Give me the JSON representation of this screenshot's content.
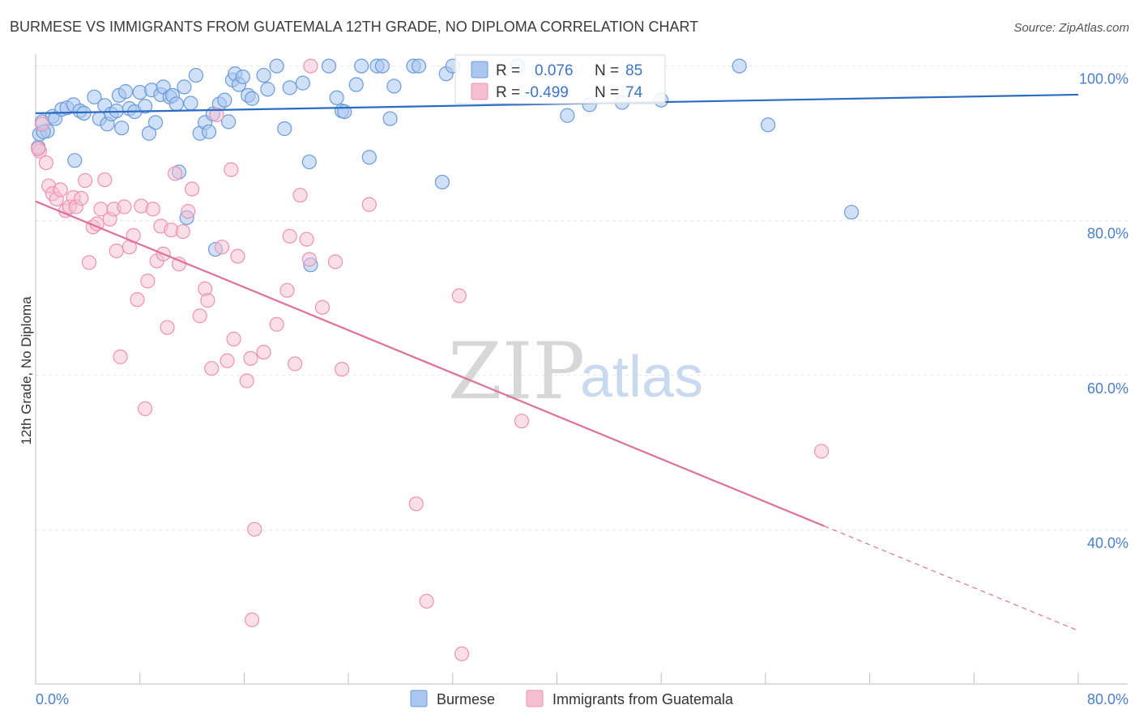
{
  "header": {
    "title": "BURMESE VS IMMIGRANTS FROM GUATEMALA 12TH GRADE, NO DIPLOMA CORRELATION CHART",
    "source": "Source: ZipAtlas.com"
  },
  "watermark": {
    "zip": "ZIP",
    "atlas": "atlas"
  },
  "legend": {
    "r_label": "R =",
    "n_label": "N =",
    "entries": [
      {
        "r": "0.076",
        "n": "85"
      },
      {
        "r": "-0.499",
        "n": "74"
      }
    ]
  },
  "colors": {
    "burmese_fill": "#a9c6ee",
    "burmese_stroke": "#6b9bdc",
    "burmese_line": "#2a6cc4",
    "guatemala_fill": "#f6bfd1",
    "guatemala_stroke": "#ee91b0",
    "guatemala_line": "#e0709a",
    "grid": "#e4e4e4",
    "axis_text": "#4a7fc9"
  },
  "chart_data": {
    "type": "scatter",
    "title": "BURMESE VS IMMIGRANTS FROM GUATEMALA 12TH GRADE, NO DIPLOMA CORRELATION CHART",
    "xlabel": "",
    "ylabel": "12th Grade, No Diploma",
    "xlim": [
      0,
      80
    ],
    "ylim": [
      20,
      102
    ],
    "x_tick_labels": [
      "0.0%",
      "80.0%"
    ],
    "y_ticks": [
      40,
      60,
      80,
      100
    ],
    "y_tick_labels": [
      "40.0%",
      "60.0%",
      "80.0%",
      "100.0%"
    ],
    "grid": true,
    "legend_placement": "top-center",
    "series": [
      {
        "name": "Burmese",
        "r": 0.076,
        "n": 85,
        "trend": {
          "x": [
            0,
            80
          ],
          "y": [
            93.9,
            96.3
          ],
          "dashed_from": null
        },
        "points": [
          [
            0.2,
            89.5
          ],
          [
            0.3,
            91.2
          ],
          [
            0.5,
            92.8
          ],
          [
            0.9,
            91.6
          ],
          [
            1.3,
            93.5
          ],
          [
            1.5,
            93.2
          ],
          [
            2.0,
            94.4
          ],
          [
            2.4,
            94.6
          ],
          [
            2.9,
            95.0
          ],
          [
            3.0,
            87.8
          ],
          [
            3.4,
            94.2
          ],
          [
            3.7,
            93.9
          ],
          [
            4.5,
            96.0
          ],
          [
            4.9,
            93.2
          ],
          [
            5.3,
            94.9
          ],
          [
            5.5,
            92.5
          ],
          [
            5.8,
            93.8
          ],
          [
            6.2,
            94.2
          ],
          [
            6.4,
            96.2
          ],
          [
            6.6,
            92.0
          ],
          [
            6.9,
            96.7
          ],
          [
            7.2,
            94.5
          ],
          [
            7.6,
            94.1
          ],
          [
            8.0,
            96.6
          ],
          [
            8.4,
            94.8
          ],
          [
            8.7,
            91.3
          ],
          [
            8.9,
            96.9
          ],
          [
            9.2,
            92.7
          ],
          [
            9.6,
            96.3
          ],
          [
            9.8,
            97.3
          ],
          [
            10.3,
            96.0
          ],
          [
            10.5,
            96.2
          ],
          [
            10.8,
            95.1
          ],
          [
            11.0,
            86.3
          ],
          [
            11.4,
            97.3
          ],
          [
            11.6,
            80.4
          ],
          [
            11.9,
            95.2
          ],
          [
            12.3,
            98.8
          ],
          [
            12.6,
            91.3
          ],
          [
            13.0,
            92.7
          ],
          [
            13.3,
            91.5
          ],
          [
            13.6,
            93.8
          ],
          [
            13.8,
            76.3
          ],
          [
            14.1,
            95.1
          ],
          [
            14.5,
            95.6
          ],
          [
            14.8,
            92.8
          ],
          [
            15.1,
            98.2
          ],
          [
            15.3,
            99.0
          ],
          [
            15.6,
            97.6
          ],
          [
            15.9,
            98.6
          ],
          [
            16.3,
            96.2
          ],
          [
            16.6,
            95.8
          ],
          [
            17.5,
            98.8
          ],
          [
            17.8,
            97.0
          ],
          [
            18.5,
            100.0
          ],
          [
            19.1,
            91.9
          ],
          [
            19.5,
            97.2
          ],
          [
            20.5,
            97.8
          ],
          [
            21.0,
            87.6
          ],
          [
            21.1,
            74.3
          ],
          [
            22.5,
            100.0
          ],
          [
            23.1,
            95.9
          ],
          [
            23.5,
            94.2
          ],
          [
            23.7,
            94.1
          ],
          [
            24.6,
            97.6
          ],
          [
            25.0,
            100.0
          ],
          [
            25.6,
            88.2
          ],
          [
            26.2,
            100.0
          ],
          [
            26.6,
            100.0
          ],
          [
            27.2,
            93.2
          ],
          [
            27.5,
            97.4
          ],
          [
            29.0,
            100.0
          ],
          [
            29.4,
            100.0
          ],
          [
            31.2,
            85.0
          ],
          [
            31.5,
            99.0
          ],
          [
            32.0,
            100.0
          ],
          [
            37.0,
            100.0
          ],
          [
            40.8,
            93.6
          ],
          [
            42.5,
            95.0
          ],
          [
            45.0,
            95.3
          ],
          [
            48.0,
            95.6
          ],
          [
            54.0,
            100.0
          ],
          [
            56.2,
            92.4
          ],
          [
            62.6,
            81.1
          ],
          [
            0.6,
            91.5
          ]
        ]
      },
      {
        "name": "Immigrants from Guatemala",
        "r": -0.499,
        "n": 74,
        "trend": {
          "x": [
            0,
            80
          ],
          "y": [
            82.5,
            27.0
          ],
          "dashed_from": 60.5
        },
        "points": [
          [
            0.3,
            89.0
          ],
          [
            0.5,
            92.5
          ],
          [
            0.8,
            87.5
          ],
          [
            1.0,
            84.5
          ],
          [
            1.3,
            83.5
          ],
          [
            1.6,
            82.8
          ],
          [
            1.9,
            84.0
          ],
          [
            2.3,
            81.3
          ],
          [
            2.6,
            81.8
          ],
          [
            2.9,
            83.0
          ],
          [
            3.1,
            81.8
          ],
          [
            3.5,
            82.9
          ],
          [
            3.8,
            85.2
          ],
          [
            4.1,
            74.6
          ],
          [
            4.4,
            79.2
          ],
          [
            4.7,
            79.6
          ],
          [
            5.0,
            81.5
          ],
          [
            5.3,
            85.3
          ],
          [
            5.7,
            80.2
          ],
          [
            6.0,
            81.5
          ],
          [
            6.2,
            76.1
          ],
          [
            6.5,
            62.4
          ],
          [
            6.8,
            81.8
          ],
          [
            7.2,
            76.6
          ],
          [
            7.5,
            78.1
          ],
          [
            7.8,
            69.8
          ],
          [
            8.1,
            81.9
          ],
          [
            8.4,
            55.7
          ],
          [
            8.6,
            72.2
          ],
          [
            9.0,
            81.5
          ],
          [
            9.3,
            74.8
          ],
          [
            9.6,
            79.3
          ],
          [
            9.8,
            75.7
          ],
          [
            10.1,
            66.2
          ],
          [
            10.4,
            78.8
          ],
          [
            10.7,
            86.1
          ],
          [
            11.0,
            74.4
          ],
          [
            11.3,
            78.6
          ],
          [
            11.7,
            81.2
          ],
          [
            12.0,
            84.1
          ],
          [
            12.6,
            67.7
          ],
          [
            13.0,
            71.2
          ],
          [
            13.2,
            69.7
          ],
          [
            13.5,
            60.9
          ],
          [
            13.9,
            93.7
          ],
          [
            14.3,
            76.6
          ],
          [
            14.7,
            61.9
          ],
          [
            15.0,
            86.6
          ],
          [
            15.2,
            64.7
          ],
          [
            15.5,
            75.4
          ],
          [
            16.2,
            59.3
          ],
          [
            16.5,
            62.2
          ],
          [
            16.8,
            40.1
          ],
          [
            16.6,
            28.4
          ],
          [
            17.5,
            63.0
          ],
          [
            18.5,
            66.6
          ],
          [
            19.3,
            71.0
          ],
          [
            19.5,
            78.0
          ],
          [
            19.9,
            61.5
          ],
          [
            20.3,
            83.3
          ],
          [
            20.8,
            77.6
          ],
          [
            21.0,
            75.0
          ],
          [
            21.1,
            100.0
          ],
          [
            22.0,
            68.8
          ],
          [
            23.0,
            74.7
          ],
          [
            23.5,
            60.8
          ],
          [
            25.6,
            82.1
          ],
          [
            29.2,
            43.4
          ],
          [
            30.0,
            30.8
          ],
          [
            32.5,
            70.3
          ],
          [
            32.7,
            24.0
          ],
          [
            37.3,
            54.1
          ],
          [
            60.3,
            50.2
          ],
          [
            0.2,
            89.3
          ]
        ]
      }
    ]
  },
  "bottom_legend": {
    "items": [
      "Burmese",
      "Immigrants from Guatemala"
    ]
  }
}
